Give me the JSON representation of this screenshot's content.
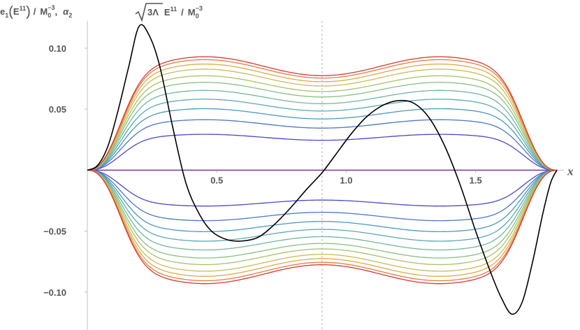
{
  "chart_data": {
    "type": "line",
    "ylabel_parts": {
      "e": "e",
      "sub1": "1",
      "E": "E",
      "sup11": "11",
      "slash": "/",
      "M": "M",
      "sub0": "0",
      "supm3": "−3",
      "comma": ",",
      "alpha": "α",
      "sub2": "2",
      "root_arg": "3Λ"
    },
    "xlabel": "x",
    "xlim": [
      0.0,
      1.8139
    ],
    "ylim": [
      -0.131,
      0.1395
    ],
    "x_ticks": [
      {
        "value": 0.5,
        "label": "0.5"
      },
      {
        "value": 1.0,
        "label": "1.0"
      },
      {
        "value": 1.5,
        "label": "1.5"
      }
    ],
    "y_ticks": [
      {
        "value": 0.1,
        "label": "0.10"
      },
      {
        "value": 0.05,
        "label": "0.05"
      },
      {
        "value": -0.05,
        "label": "−0.05"
      },
      {
        "value": -0.1,
        "label": "−0.10"
      }
    ],
    "reference_line_x": 0.907,
    "endpoints": [
      0.0,
      1.814
    ],
    "family_mid_values": [
      0.0,
      0.0245,
      0.0345,
      0.042,
      0.0485,
      0.0545,
      0.06,
      0.0645,
      0.069,
      0.0725,
      0.0755,
      0.0775
    ],
    "family_peak_values": [
      0.0,
      0.0294,
      0.0414,
      0.0504,
      0.0582,
      0.0654,
      0.072,
      0.0774,
      0.0828,
      0.087,
      0.0906,
      0.093
    ],
    "family_colors": [
      "#8040a0",
      "#4a4acb",
      "#4a78c8",
      "#4a98c0",
      "#5aaab0",
      "#70b898",
      "#88c080",
      "#a8c268",
      "#c8bc58",
      "#e0a848",
      "#e87a40",
      "#d83830"
    ],
    "black_curve": {
      "color": "#000000",
      "points": [
        [
          0.0,
          0.0
        ],
        [
          0.04,
          0.004
        ],
        [
          0.08,
          0.02
        ],
        [
          0.12,
          0.05
        ],
        [
          0.16,
          0.085
        ],
        [
          0.2,
          0.118
        ],
        [
          0.24,
          0.11
        ],
        [
          0.28,
          0.085
        ],
        [
          0.33,
          0.035
        ],
        [
          0.38,
          -0.01
        ],
        [
          0.43,
          -0.035
        ],
        [
          0.48,
          -0.05
        ],
        [
          0.54,
          -0.057
        ],
        [
          0.6,
          -0.058
        ],
        [
          0.66,
          -0.055
        ],
        [
          0.72,
          -0.045
        ],
        [
          0.78,
          -0.032
        ],
        [
          0.85,
          -0.015
        ],
        [
          0.907,
          -0.002
        ],
        [
          0.96,
          0.013
        ],
        [
          1.02,
          0.03
        ],
        [
          1.08,
          0.044
        ],
        [
          1.14,
          0.053
        ],
        [
          1.2,
          0.057
        ],
        [
          1.26,
          0.055
        ],
        [
          1.32,
          0.043
        ],
        [
          1.38,
          0.02
        ],
        [
          1.44,
          -0.012
        ],
        [
          1.5,
          -0.05
        ],
        [
          1.56,
          -0.085
        ],
        [
          1.6,
          -0.105
        ],
        [
          1.64,
          -0.118
        ],
        [
          1.68,
          -0.108
        ],
        [
          1.72,
          -0.075
        ],
        [
          1.76,
          -0.035
        ],
        [
          1.79,
          -0.01
        ],
        [
          1.814,
          0.0
        ]
      ]
    }
  }
}
